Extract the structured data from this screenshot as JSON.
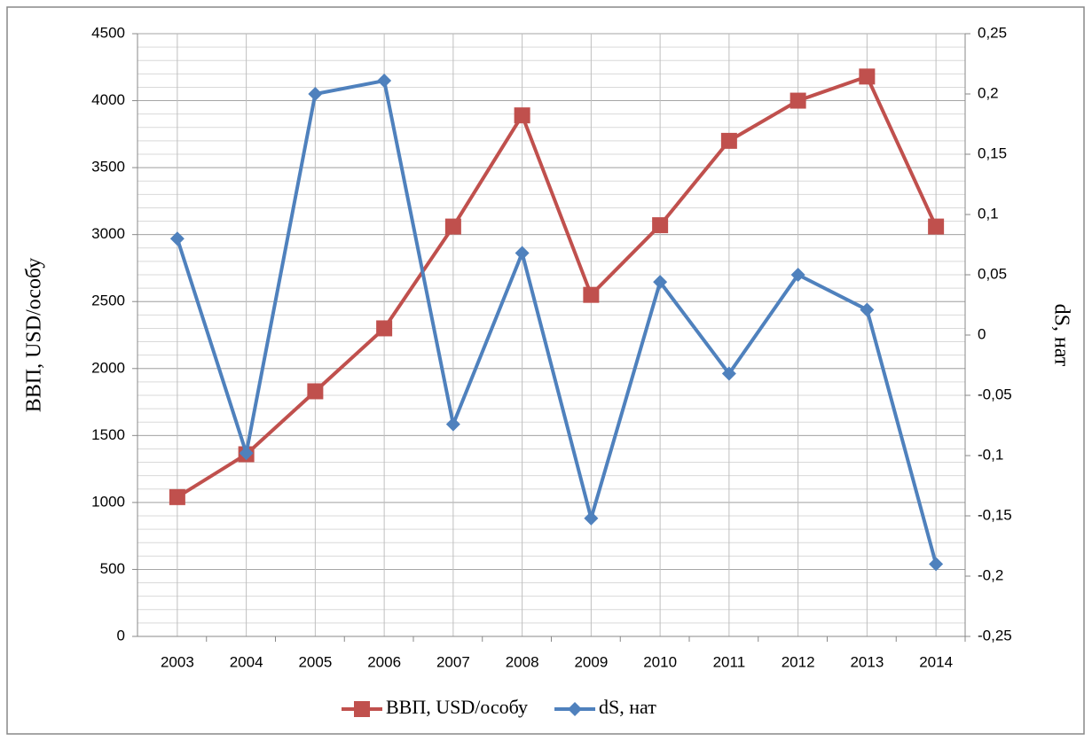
{
  "chart_data": {
    "type": "line",
    "categories": [
      "2003",
      "2004",
      "2005",
      "2006",
      "2007",
      "2008",
      "2009",
      "2010",
      "2011",
      "2012",
      "2013",
      "2014"
    ],
    "series": [
      {
        "name": "ВВП, USD/особу",
        "color": "#c0504d",
        "marker": "square",
        "values": [
          1040,
          1360,
          1830,
          2300,
          3060,
          3890,
          2550,
          3070,
          3700,
          4000,
          4180,
          3060
        ]
      },
      {
        "name": "dS, нат",
        "color": "#4f81bd",
        "marker": "diamond",
        "axis": "y2",
        "values": [
          0.08,
          -0.098,
          0.2,
          0.211,
          -0.074,
          0.068,
          -0.152,
          0.044,
          -0.032,
          0.05,
          0.021,
          -0.19
        ]
      }
    ],
    "y_label": "ВВП, USD/особу",
    "y2_label": "dS, нат",
    "ylim": [
      0,
      4500
    ],
    "yticks": [
      0,
      500,
      1000,
      1500,
      2000,
      2500,
      3000,
      3500,
      4000,
      4500
    ],
    "y2lim": [
      -0.25,
      0.25
    ],
    "y2ticks": [
      {
        "value": -0.25,
        "label": "-0,25"
      },
      {
        "value": -0.2,
        "label": "-0,2"
      },
      {
        "value": -0.15,
        "label": "-0,15"
      },
      {
        "value": -0.1,
        "label": "-0,1"
      },
      {
        "value": -0.05,
        "label": "-0,05"
      },
      0,
      {
        "value": 0.05,
        "label": "0,05"
      },
      {
        "value": 0.1,
        "label": "0,1"
      },
      {
        "value": 0.15,
        "label": "0,15"
      },
      {
        "value": 0.2,
        "label": "0,2"
      },
      {
        "value": 0.25,
        "label": "0,25"
      }
    ],
    "grid": true,
    "legend": "bottom"
  }
}
